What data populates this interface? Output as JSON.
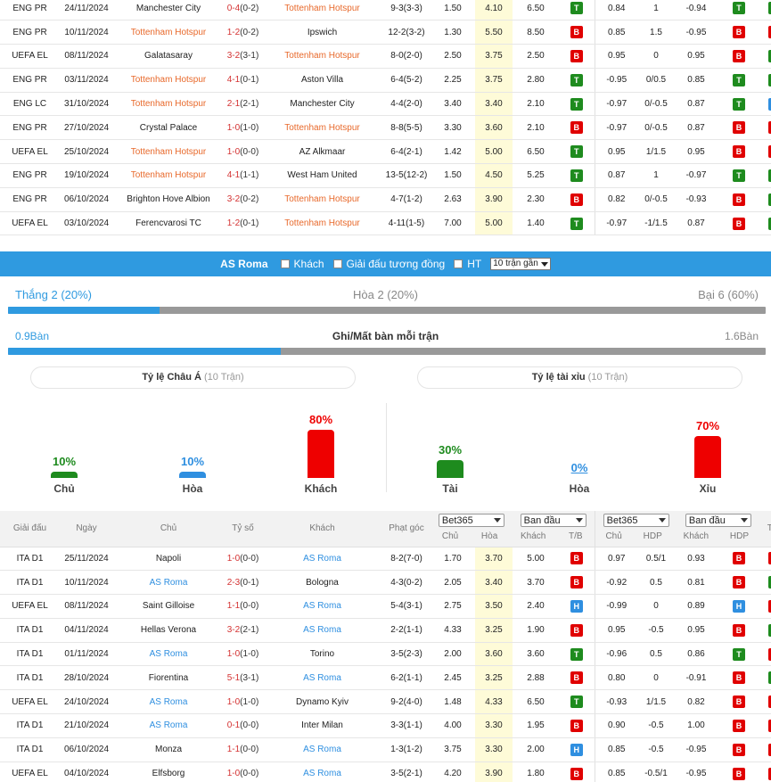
{
  "top_matches": [
    {
      "league": "ENG PR",
      "date": "24/11/2024",
      "home": "Manchester City",
      "home_main": false,
      "score": "0-4",
      "ht": "(0-2)",
      "away": "Tottenham Hotspur",
      "away_main": true,
      "corners": "9-3(3-3)",
      "o1": "1.50",
      "o2": "4.10",
      "o3": "6.50",
      "r1": "T",
      "a1": "0.84",
      "hdp": "1",
      "a2": "-0.94",
      "r2": "T",
      "r3": "T"
    },
    {
      "league": "ENG PR",
      "date": "10/11/2024",
      "home": "Tottenham Hotspur",
      "home_main": true,
      "score": "1-2",
      "ht": "(0-2)",
      "away": "Ipswich",
      "away_main": false,
      "corners": "12-2(3-2)",
      "o1": "1.30",
      "o2": "5.50",
      "o3": "8.50",
      "r1": "B",
      "a1": "0.85",
      "hdp": "1.5",
      "a2": "-0.95",
      "r2": "B",
      "r3": "X"
    },
    {
      "league": "UEFA EL",
      "date": "08/11/2024",
      "home": "Galatasaray",
      "home_main": false,
      "score": "3-2",
      "ht": "(3-1)",
      "away": "Tottenham Hotspur",
      "away_main": true,
      "corners": "8-0(2-0)",
      "o1": "2.50",
      "o2": "3.75",
      "o3": "2.50",
      "r1": "B",
      "a1": "0.95",
      "hdp": "0",
      "a2": "0.95",
      "r2": "B",
      "r3": "T"
    },
    {
      "league": "ENG PR",
      "date": "03/11/2024",
      "home": "Tottenham Hotspur",
      "home_main": true,
      "score": "4-1",
      "ht": "(0-1)",
      "away": "Aston Villa",
      "away_main": false,
      "corners": "6-4(5-2)",
      "o1": "2.25",
      "o2": "3.75",
      "o3": "2.80",
      "r1": "T",
      "a1": "-0.95",
      "hdp": "0/0.5",
      "a2": "0.85",
      "r2": "T",
      "r3": "T"
    },
    {
      "league": "ENG LC",
      "date": "31/10/2024",
      "home": "Tottenham Hotspur",
      "home_main": true,
      "score": "2-1",
      "ht": "(2-1)",
      "away": "Manchester City",
      "away_main": false,
      "corners": "4-4(2-0)",
      "o1": "3.40",
      "o2": "3.40",
      "o3": "2.10",
      "r1": "T",
      "a1": "-0.97",
      "hdp": "0/-0.5",
      "a2": "0.87",
      "r2": "T",
      "r3": "H"
    },
    {
      "league": "ENG PR",
      "date": "27/10/2024",
      "home": "Crystal Palace",
      "home_main": false,
      "score": "1-0",
      "ht": "(1-0)",
      "away": "Tottenham Hotspur",
      "away_main": true,
      "corners": "8-8(5-5)",
      "o1": "3.30",
      "o2": "3.60",
      "o3": "2.10",
      "r1": "B",
      "a1": "-0.97",
      "hdp": "0/-0.5",
      "a2": "0.87",
      "r2": "B",
      "r3": "X"
    },
    {
      "league": "UEFA EL",
      "date": "25/10/2024",
      "home": "Tottenham Hotspur",
      "home_main": true,
      "score": "1-0",
      "ht": "(0-0)",
      "away": "AZ Alkmaar",
      "away_main": false,
      "corners": "6-4(2-1)",
      "o1": "1.42",
      "o2": "5.00",
      "o3": "6.50",
      "r1": "T",
      "a1": "0.95",
      "hdp": "1/1.5",
      "a2": "0.95",
      "r2": "B",
      "r3": "X"
    },
    {
      "league": "ENG PR",
      "date": "19/10/2024",
      "home": "Tottenham Hotspur",
      "home_main": true,
      "score": "4-1",
      "ht": "(1-1)",
      "away": "West Ham United",
      "away_main": false,
      "corners": "13-5(12-2)",
      "o1": "1.50",
      "o2": "4.50",
      "o3": "5.25",
      "r1": "T",
      "a1": "0.87",
      "hdp": "1",
      "a2": "-0.97",
      "r2": "T",
      "r3": "T"
    },
    {
      "league": "ENG PR",
      "date": "06/10/2024",
      "home": "Brighton Hove Albion",
      "home_main": false,
      "score": "3-2",
      "ht": "(0-2)",
      "away": "Tottenham Hotspur",
      "away_main": true,
      "corners": "4-7(1-2)",
      "o1": "2.63",
      "o2": "3.90",
      "o3": "2.30",
      "r1": "B",
      "a1": "0.82",
      "hdp": "0/-0.5",
      "a2": "-0.93",
      "r2": "B",
      "r3": "T"
    },
    {
      "league": "UEFA EL",
      "date": "03/10/2024",
      "home": "Ferencvarosi TC",
      "home_main": false,
      "score": "1-2",
      "ht": "(0-1)",
      "away": "Tottenham Hotspur",
      "away_main": true,
      "corners": "4-11(1-5)",
      "o1": "7.00",
      "o2": "5.00",
      "o3": "1.40",
      "r1": "T",
      "a1": "-0.97",
      "hdp": "-1/1.5",
      "a2": "0.87",
      "r2": "B",
      "r3": "T"
    }
  ],
  "filter": {
    "team": "AS Roma",
    "opt_away": "Khách",
    "opt_same": "Giải đấu tương đồng",
    "opt_ht": "HT",
    "select": "10 trận gần"
  },
  "wdl": {
    "win": "Thắng 2 (20%)",
    "draw": "Hòa 2 (20%)",
    "loss": "Bại 6 (60%)",
    "win_fraction": 0.2
  },
  "goals": {
    "for": "0.9Bàn",
    "title": "Ghi/Mất bàn mỗi trận",
    "against": "1.6Bàn",
    "for_fraction": 0.36
  },
  "asian": {
    "title": "Tỷ lệ Châu Á",
    "sub": "(10 Trận)",
    "cols": [
      {
        "label": "Chủ",
        "pct": "10%",
        "value": 10,
        "color": "#1e8b1e"
      },
      {
        "label": "Hòa",
        "pct": "10%",
        "value": 10,
        "color": "#2f8fe0"
      },
      {
        "label": "Khách",
        "pct": "80%",
        "value": 80,
        "color": "#ee0000"
      }
    ]
  },
  "ou": {
    "title": "Tỷ lệ tài xỉu",
    "sub": "(10 Trận)",
    "cols": [
      {
        "label": "Tài",
        "pct": "30%",
        "value": 30,
        "color": "#1e8b1e"
      },
      {
        "label": "Hòa",
        "pct": "0%",
        "value": 0,
        "color": "#2f8fe0"
      },
      {
        "label": "Xỉu",
        "pct": "70%",
        "value": 70,
        "color": "#ee0000"
      }
    ]
  },
  "bottom_header": {
    "league": "Giải đấu",
    "date": "Ngày",
    "home": "Chủ",
    "score": "Tỷ số",
    "away": "Khách",
    "corners": "Phạt góc",
    "book1": "Bet365",
    "type1": "Ban đầu",
    "book2": "Bet365",
    "type2": "Ban đầu",
    "c1": "Chủ",
    "c2": "Hòa",
    "c3": "Khách",
    "tb": "T/B",
    "c4": "Chủ",
    "c5": "HDP",
    "c6": "Khách",
    "c7": "HDP",
    "tx": "T/X"
  },
  "bottom_matches": [
    {
      "league": "ITA D1",
      "date": "25/11/2024",
      "home": "Napoli",
      "home_main": false,
      "score": "1-0",
      "ht": "(0-0)",
      "away": "AS Roma",
      "away_main": true,
      "corners": "8-2(7-0)",
      "o1": "1.70",
      "o2": "3.70",
      "o3": "5.00",
      "r1": "B",
      "a1": "0.97",
      "hdp": "0.5/1",
      "a2": "0.93",
      "r2": "B",
      "r3": "X"
    },
    {
      "league": "ITA D1",
      "date": "10/11/2024",
      "home": "AS Roma",
      "home_main": true,
      "score": "2-3",
      "ht": "(0-1)",
      "away": "Bologna",
      "away_main": false,
      "corners": "4-3(0-2)",
      "o1": "2.05",
      "o2": "3.40",
      "o3": "3.70",
      "r1": "B",
      "a1": "-0.92",
      "hdp": "0.5",
      "a2": "0.81",
      "r2": "B",
      "r3": "T"
    },
    {
      "league": "UEFA EL",
      "date": "08/11/2024",
      "home": "Saint Gilloise",
      "home_main": false,
      "score": "1-1",
      "ht": "(0-0)",
      "away": "AS Roma",
      "away_main": true,
      "corners": "5-4(3-1)",
      "o1": "2.75",
      "o2": "3.50",
      "o3": "2.40",
      "r1": "H",
      "a1": "-0.99",
      "hdp": "0",
      "a2": "0.89",
      "r2": "H",
      "r3": "X"
    },
    {
      "league": "ITA D1",
      "date": "04/11/2024",
      "home": "Hellas Verona",
      "home_main": false,
      "score": "3-2",
      "ht": "(2-1)",
      "away": "AS Roma",
      "away_main": true,
      "corners": "2-2(1-1)",
      "o1": "4.33",
      "o2": "3.25",
      "o3": "1.90",
      "r1": "B",
      "a1": "0.95",
      "hdp": "-0.5",
      "a2": "0.95",
      "r2": "B",
      "r3": "T"
    },
    {
      "league": "ITA D1",
      "date": "01/11/2024",
      "home": "AS Roma",
      "home_main": true,
      "score": "1-0",
      "ht": "(1-0)",
      "away": "Torino",
      "away_main": false,
      "corners": "3-5(2-3)",
      "o1": "2.00",
      "o2": "3.60",
      "o3": "3.60",
      "r1": "T",
      "a1": "-0.96",
      "hdp": "0.5",
      "a2": "0.86",
      "r2": "T",
      "r3": "X"
    },
    {
      "league": "ITA D1",
      "date": "28/10/2024",
      "home": "Fiorentina",
      "home_main": false,
      "score": "5-1",
      "ht": "(3-1)",
      "away": "AS Roma",
      "away_main": true,
      "corners": "6-2(1-1)",
      "o1": "2.45",
      "o2": "3.25",
      "o3": "2.88",
      "r1": "B",
      "a1": "0.80",
      "hdp": "0",
      "a2": "-0.91",
      "r2": "B",
      "r3": "T"
    },
    {
      "league": "UEFA EL",
      "date": "24/10/2024",
      "home": "AS Roma",
      "home_main": true,
      "score": "1-0",
      "ht": "(1-0)",
      "away": "Dynamo Kyiv",
      "away_main": false,
      "corners": "9-2(4-0)",
      "o1": "1.48",
      "o2": "4.33",
      "o3": "6.50",
      "r1": "T",
      "a1": "-0.93",
      "hdp": "1/1.5",
      "a2": "0.82",
      "r2": "B",
      "r3": "X"
    },
    {
      "league": "ITA D1",
      "date": "21/10/2024",
      "home": "AS Roma",
      "home_main": true,
      "score": "0-1",
      "ht": "(0-0)",
      "away": "Inter Milan",
      "away_main": false,
      "corners": "3-3(1-1)",
      "o1": "4.00",
      "o2": "3.30",
      "o3": "1.95",
      "r1": "B",
      "a1": "0.90",
      "hdp": "-0.5",
      "a2": "1.00",
      "r2": "B",
      "r3": "X"
    },
    {
      "league": "ITA D1",
      "date": "06/10/2024",
      "home": "Monza",
      "home_main": false,
      "score": "1-1",
      "ht": "(0-0)",
      "away": "AS Roma",
      "away_main": true,
      "corners": "1-3(1-2)",
      "o1": "3.75",
      "o2": "3.30",
      "o3": "2.00",
      "r1": "H",
      "a1": "0.85",
      "hdp": "-0.5",
      "a2": "-0.95",
      "r2": "B",
      "r3": "X"
    },
    {
      "league": "UEFA EL",
      "date": "04/10/2024",
      "home": "Elfsborg",
      "home_main": false,
      "score": "1-0",
      "ht": "(0-0)",
      "away": "AS Roma",
      "away_main": true,
      "corners": "3-5(2-1)",
      "o1": "4.20",
      "o2": "3.90",
      "o3": "1.80",
      "r1": "B",
      "a1": "0.85",
      "hdp": "-0.5/1",
      "a2": "-0.95",
      "r2": "B",
      "r3": "X"
    }
  ]
}
